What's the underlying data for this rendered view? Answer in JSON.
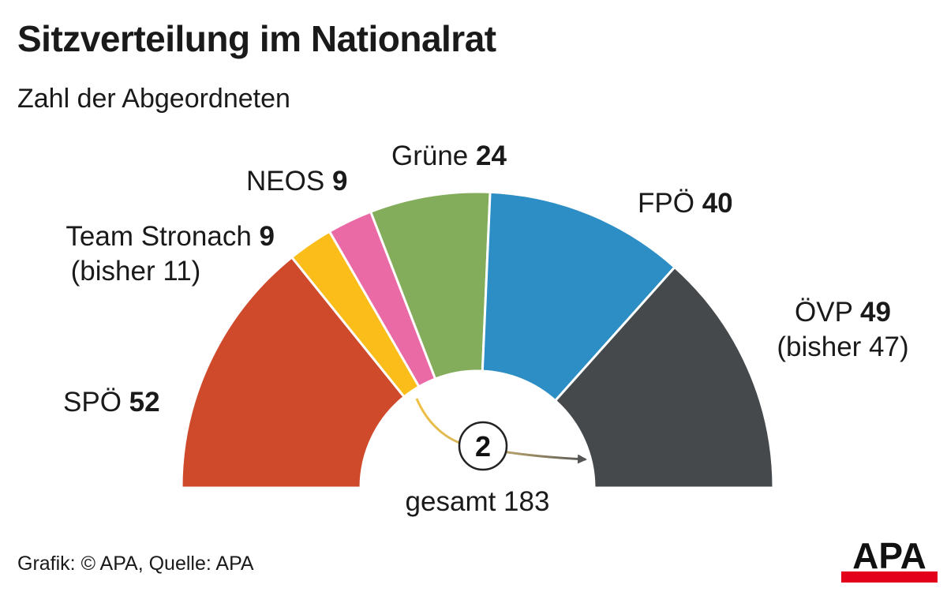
{
  "title": "Sitzverteilung im Nationalrat",
  "subtitle": "Zahl der Abgeordneten",
  "footer": "Grafik: © APA, Quelle: APA",
  "logo_text": "APA",
  "chart_data": {
    "type": "pie",
    "variant": "parliament-semicircle",
    "title": "Sitzverteilung im Nationalrat",
    "subtitle": "Zahl der Abgeordneten",
    "total_label": "gesamt 183",
    "total": 183,
    "series": [
      {
        "name": "SPÖ",
        "value": 52,
        "color": "#cf4a2a"
      },
      {
        "name": "Team Stronach",
        "value": 9,
        "color": "#fbbd1a",
        "previous_label": "(bisher 11)",
        "previous": 11
      },
      {
        "name": "NEOS",
        "value": 9,
        "color": "#ea6aa6"
      },
      {
        "name": "Grüne",
        "value": 24,
        "color": "#84ad5b"
      },
      {
        "name": "FPÖ",
        "value": 40,
        "color": "#2d8ec5"
      },
      {
        "name": "ÖVP",
        "value": 49,
        "color": "#46494c",
        "previous_label": "(bisher 47)",
        "previous": 47
      }
    ],
    "transfer": {
      "value": 2,
      "from": "Team Stronach",
      "to": "ÖVP"
    }
  }
}
